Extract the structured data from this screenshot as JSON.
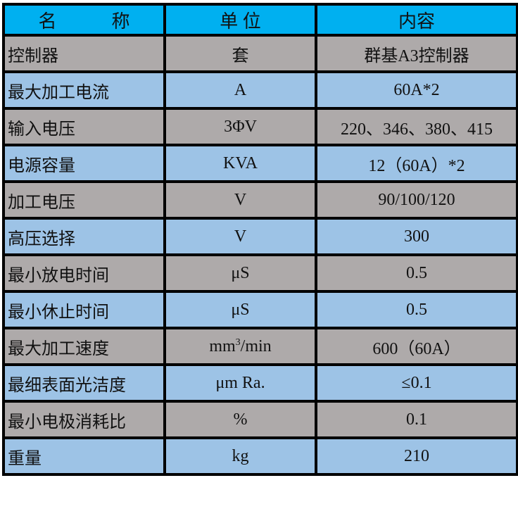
{
  "header": {
    "name": "名　　　称",
    "unit": "单 位",
    "content": "内容"
  },
  "colors": {
    "header": "#00b0f0",
    "row_gray": "#aeaaaa",
    "row_blue": "#9dc3e6",
    "border": "#000000"
  },
  "rows": [
    {
      "name": "控制器",
      "unit": "套",
      "content": "群基A3控制器"
    },
    {
      "name": "最大加工电流",
      "unit": "A",
      "content": "60A*2"
    },
    {
      "name": "输入电压",
      "unit": "3ΦV",
      "content": "220、346、380、415"
    },
    {
      "name": "电源容量",
      "unit": "KVA",
      "content": "12（60A）*2"
    },
    {
      "name": "加工电压",
      "unit": "V",
      "content": "90/100/120"
    },
    {
      "name": "高压选择",
      "unit": "V",
      "content": "300"
    },
    {
      "name": "最小放电时间",
      "unit": "μS",
      "content": "0.5"
    },
    {
      "name": "最小休止时间",
      "unit": "μS",
      "content": "0.5"
    },
    {
      "name": "最大加工速度",
      "unit": "mm",
      "unit_sup": "3",
      "unit_suffix": "/min",
      "content": "600（60A）"
    },
    {
      "name": "最细表面光洁度",
      "unit": "μm Ra.",
      "content": "≤0.1"
    },
    {
      "name": "最小电极消耗比",
      "unit": "%",
      "content": "0.1"
    },
    {
      "name": "重量",
      "unit": "kg",
      "content": "210"
    }
  ]
}
